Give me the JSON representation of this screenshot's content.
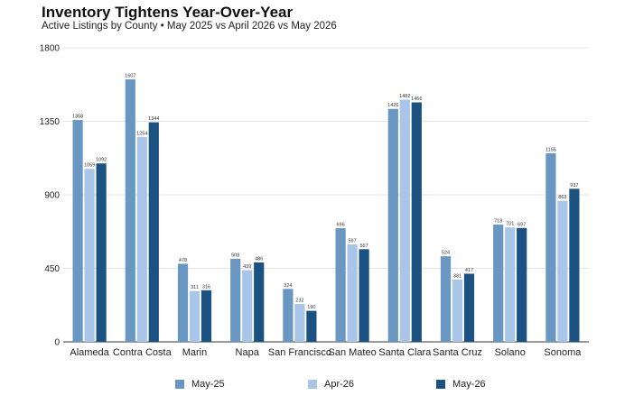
{
  "chart_data": {
    "type": "bar",
    "title": "Inventory Tightens Year-Over-Year",
    "subtitle": "Active Listings by County • May 2025 vs April 2026 vs May 2026",
    "categories": [
      "Alameda",
      "Contra Costa",
      "Marin",
      "Napa",
      "San Francisco",
      "San Mateo",
      "Santa Clara",
      "Santa Cruz",
      "Solano",
      "Sonoma"
    ],
    "series": [
      {
        "name": "May-25",
        "color": "#6a97c2",
        "values": [
          1358,
          1607,
          478,
          508,
          324,
          696,
          1426,
          524,
          718,
          1155
        ]
      },
      {
        "name": "Apr-26",
        "color": "#a9c6e8",
        "values": [
          1059,
          1254,
          311,
          439,
          232,
          597,
          1482,
          381,
          701,
          863
        ]
      },
      {
        "name": "May-26",
        "color": "#1c5282",
        "values": [
          1092,
          1344,
          316,
          486,
          190,
          567,
          1466,
          417,
          697,
          937
        ]
      }
    ],
    "yticks": [
      0,
      450,
      900,
      1350,
      1800
    ],
    "ylim": [
      0,
      1800
    ],
    "grid": true,
    "legend_position": "bottom"
  }
}
